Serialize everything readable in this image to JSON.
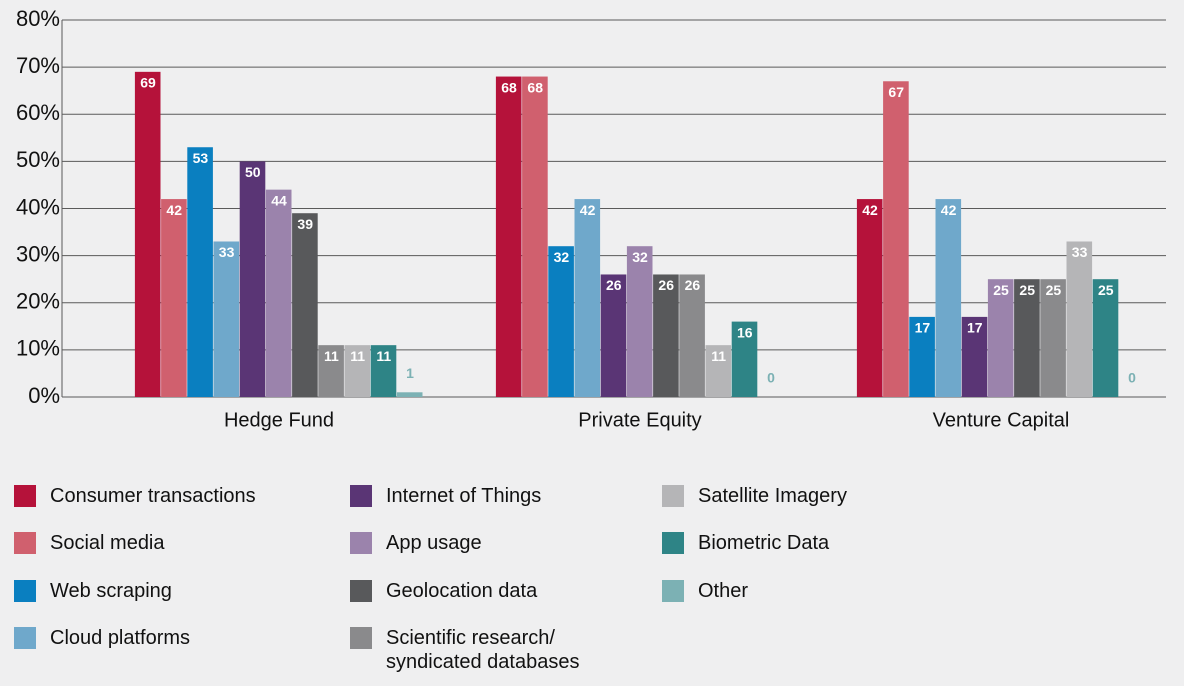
{
  "chart_data": {
    "type": "bar",
    "categories": [
      "Hedge Fund",
      "Private Equity",
      "Venture Capital"
    ],
    "series": [
      {
        "name": "Consumer transactions",
        "color": "#b5123a",
        "values": [
          69,
          68,
          42
        ]
      },
      {
        "name": "Social media",
        "color": "#d0606e",
        "values": [
          42,
          68,
          67
        ]
      },
      {
        "name": "Web scraping",
        "color": "#0a7fc0",
        "values": [
          53,
          32,
          17
        ]
      },
      {
        "name": "Cloud platforms",
        "color": "#6fa8cb",
        "values": [
          33,
          42,
          42
        ]
      },
      {
        "name": "Internet of Things",
        "color": "#5a3575",
        "values": [
          50,
          26,
          17
        ]
      },
      {
        "name": "App usage",
        "color": "#9b83ac",
        "values": [
          44,
          32,
          25
        ]
      },
      {
        "name": "Geolocation data",
        "color": "#58595b",
        "values": [
          39,
          26,
          25
        ]
      },
      {
        "name": "Scientific research/\nsyndicated databases",
        "color": "#8a8a8c",
        "values": [
          11,
          26,
          25
        ]
      },
      {
        "name": "Satellite Imagery",
        "color": "#b5b5b7",
        "values": [
          11,
          11,
          33
        ]
      },
      {
        "name": "Biometric Data",
        "color": "#2e8486",
        "values": [
          11,
          16,
          25
        ]
      },
      {
        "name": "Other",
        "color": "#7cb1b4",
        "values": [
          1,
          0,
          0
        ]
      }
    ],
    "ylim": [
      0,
      80
    ],
    "yticks": [
      {
        "value": 0,
        "label": "0%"
      },
      {
        "value": 10,
        "label": "10%"
      },
      {
        "value": 20,
        "label": "20%"
      },
      {
        "value": 30,
        "label": "30%"
      },
      {
        "value": 40,
        "label": "40%"
      },
      {
        "value": 50,
        "label": "50%"
      },
      {
        "value": 60,
        "label": "60%"
      },
      {
        "value": 70,
        "label": "70%"
      },
      {
        "value": 80,
        "label": "80%"
      }
    ],
    "grid": true
  }
}
